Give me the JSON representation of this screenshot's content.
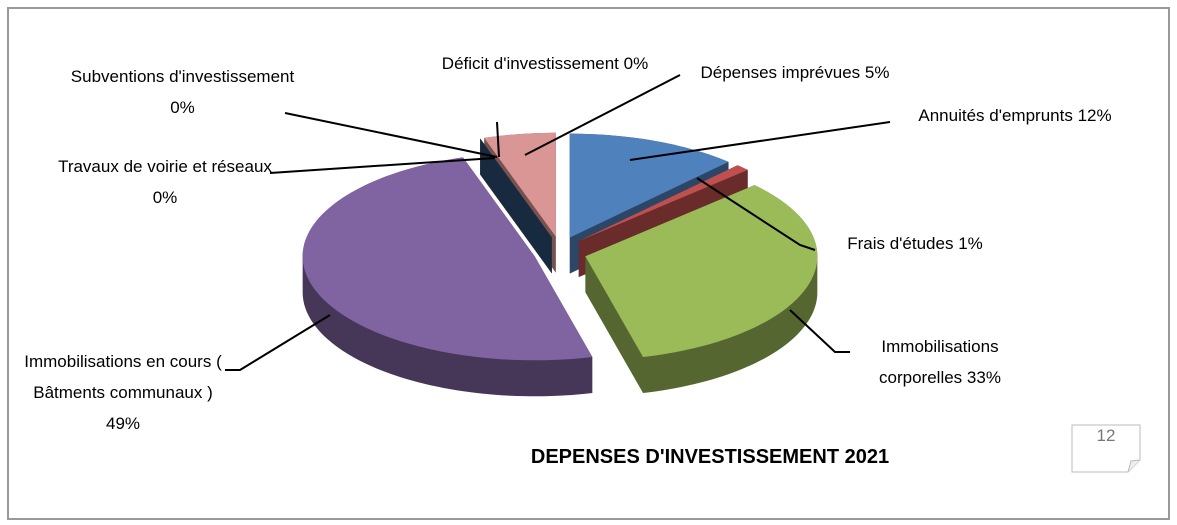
{
  "chart_data": {
    "type": "pie3d",
    "title": "DEPENSES D'INVESTISSEMENT 2021",
    "categories": [
      "Annuités d'emprunts",
      "Frais d'études",
      "Immobilisations corporelles",
      "Immobilisations en cours  ( Bâtments communaux )",
      "Travaux de voirie et réseaux",
      "Subventions d'investissement",
      "Déficit d'investissement",
      "Dépenses imprévues"
    ],
    "values": [
      12,
      1,
      33,
      49,
      0,
      0,
      0,
      5
    ],
    "value_labels": [
      "12%",
      "1%",
      "33%",
      "49%",
      "0%",
      "0%",
      "0%",
      "5%"
    ],
    "colors": [
      "#4f81bd",
      "#c0504d",
      "#9bbb59",
      "#8064a2",
      "#3b8a9a",
      "#f79646",
      "#2c4d75",
      "#d99694"
    ]
  },
  "page_number": "12"
}
